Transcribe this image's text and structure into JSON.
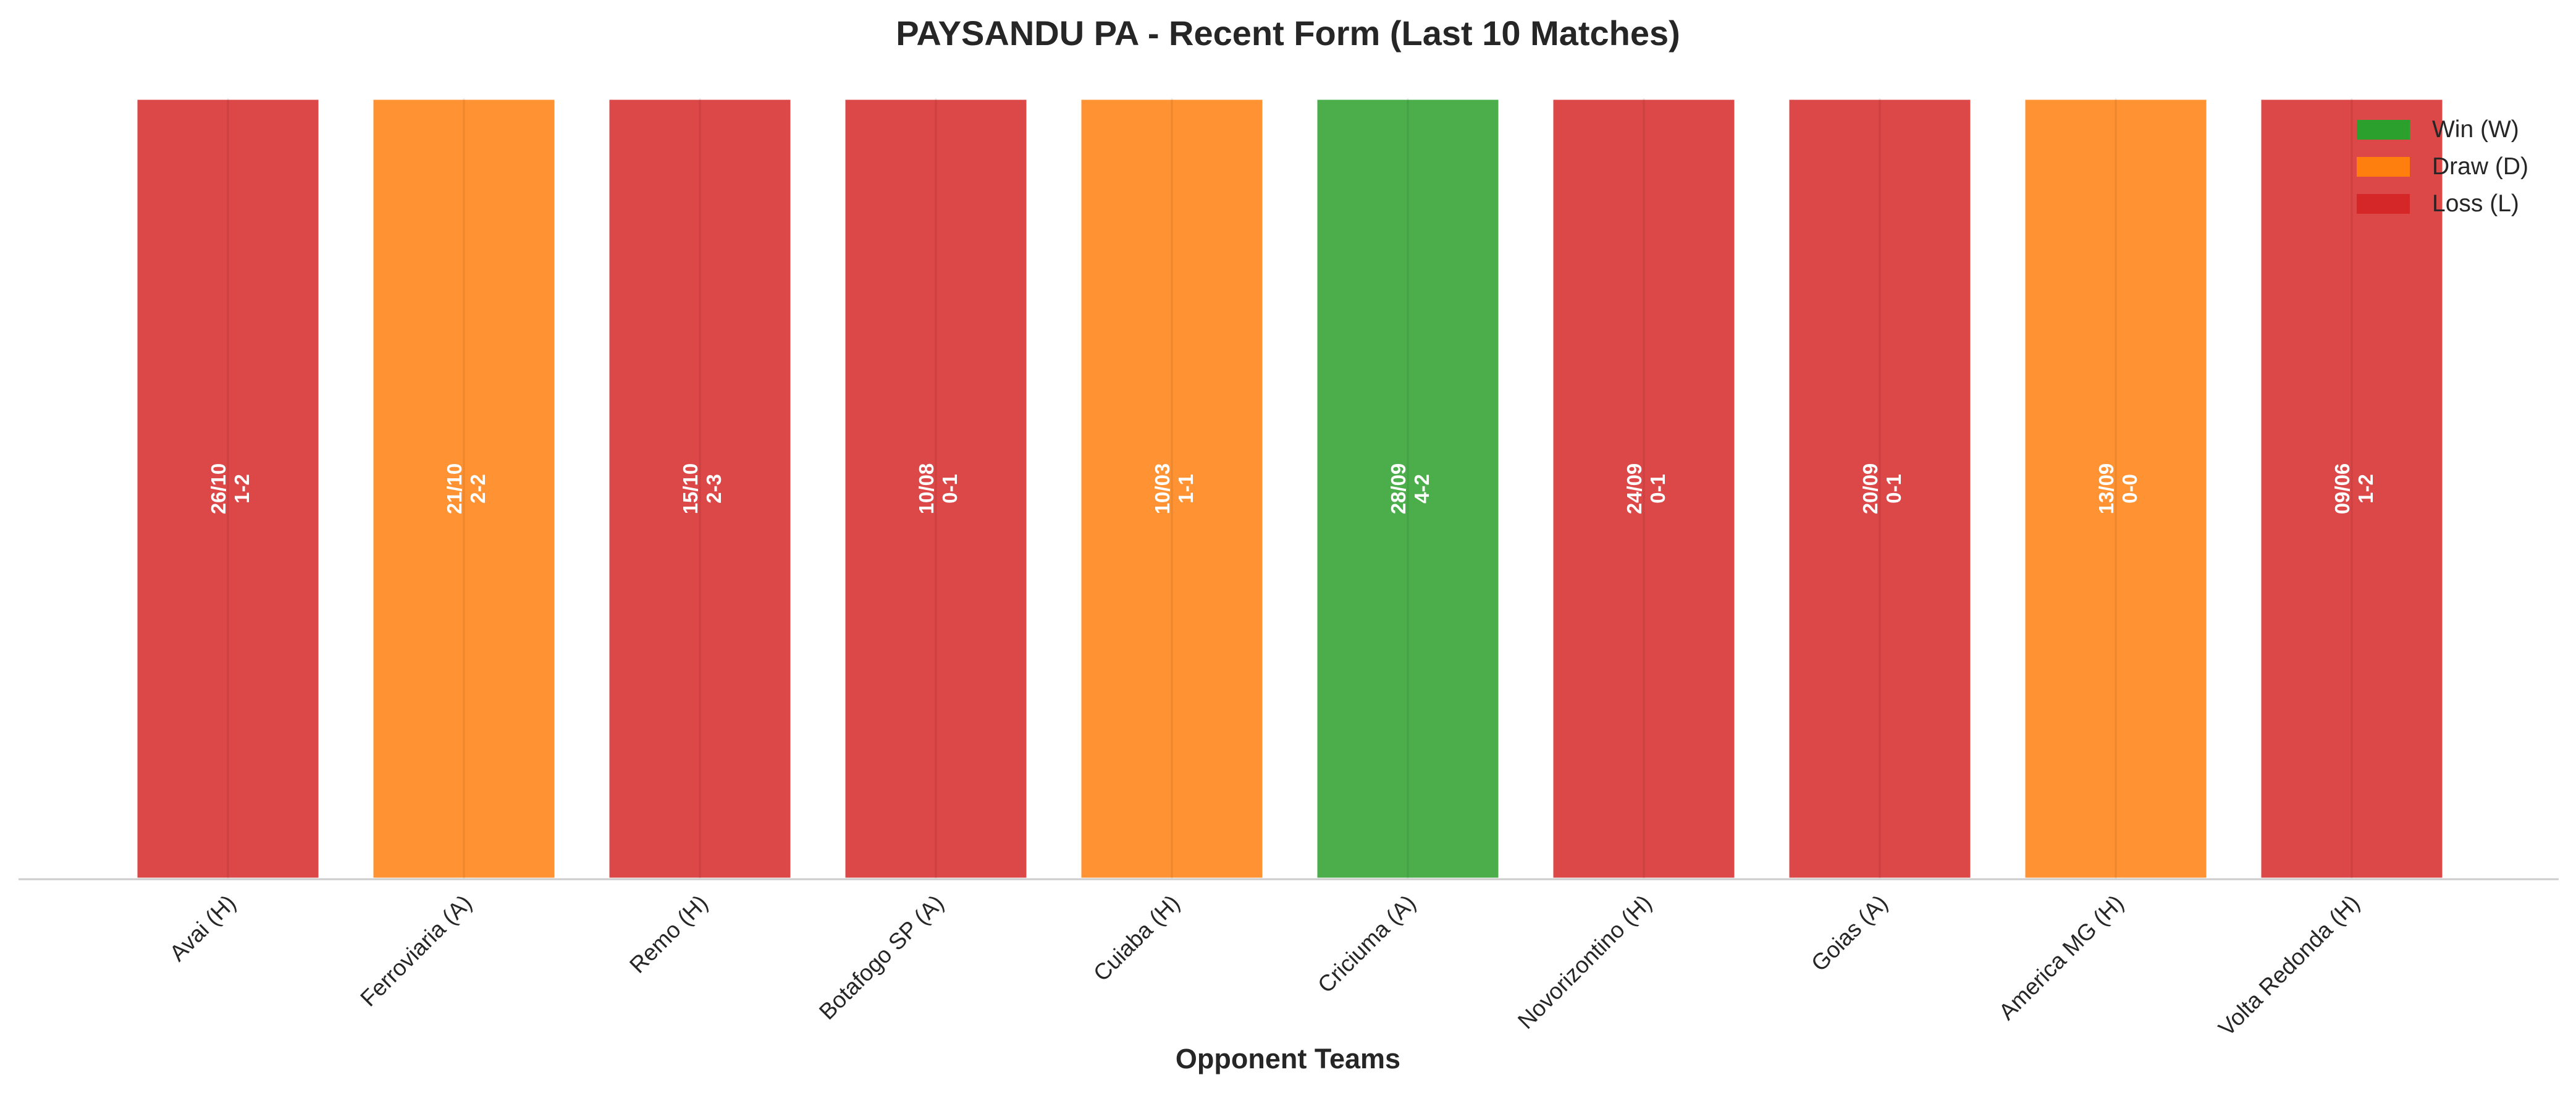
{
  "chart_data": {
    "type": "bar",
    "title": "PAYSANDU PA - Recent Form (Last 10 Matches)",
    "xlabel": "Opponent Teams",
    "ylabel": "",
    "ylim": [
      0,
      1
    ],
    "grid": true,
    "legend_position": "top-right",
    "categories": [
      "Avai (H)",
      "Ferroviaria (A)",
      "Remo (H)",
      "Botafogo SP (A)",
      "Cuiaba (H)",
      "Criciuma (A)",
      "Novorizontino (H)",
      "Goias (A)",
      "America MG (H)",
      "Volta Redonda (H)"
    ],
    "values": [
      1,
      1,
      1,
      1,
      1,
      1,
      1,
      1,
      1,
      1
    ],
    "results": [
      "L",
      "D",
      "L",
      "L",
      "D",
      "W",
      "L",
      "L",
      "D",
      "L"
    ],
    "dates": [
      "26/10",
      "21/10",
      "15/10",
      "10/08",
      "10/03",
      "28/09",
      "24/09",
      "20/09",
      "13/09",
      "09/06"
    ],
    "scores": [
      "1-2",
      "2-2",
      "2-3",
      "0-1",
      "1-1",
      "4-2",
      "0-1",
      "0-1",
      "0-0",
      "1-2"
    ],
    "legend": [
      {
        "key": "W",
        "label": "Win (W)",
        "color": "#2ca02c"
      },
      {
        "key": "D",
        "label": "Draw (D)",
        "color": "#ff7f0e"
      },
      {
        "key": "L",
        "label": "Loss (L)",
        "color": "#d62728"
      }
    ]
  }
}
